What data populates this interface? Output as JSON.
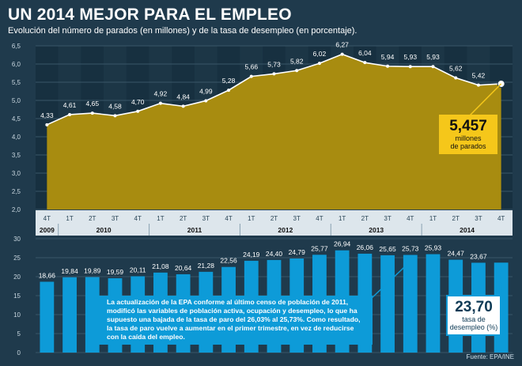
{
  "header": {
    "title": "UN 2014 MEJOR PARA EL EMPLEO",
    "subtitle": "Evolución del número de parados (en millones) y de la tasa de desempleo (en porcentaje)."
  },
  "chart_data": [
    {
      "type": "area",
      "title": "",
      "xlabel": "",
      "ylabel": "",
      "categories": [
        "4T 2009",
        "1T 2010",
        "2T 2010",
        "3T 2010",
        "4T 2010",
        "1T 2011",
        "2T 2011",
        "3T 2011",
        "4T 2011",
        "1T 2012",
        "2T 2012",
        "3T 2012",
        "4T 2012",
        "1T 2013",
        "2T 2013",
        "3T 2013",
        "4T 2013",
        "1T 2014",
        "2T 2014",
        "3T 2014",
        "4T 2014"
      ],
      "values": [
        4.33,
        4.61,
        4.65,
        4.58,
        4.7,
        4.92,
        4.84,
        4.99,
        5.28,
        5.66,
        5.73,
        5.82,
        6.02,
        6.27,
        6.04,
        5.94,
        5.93,
        5.93,
        5.62,
        5.42,
        5.457
      ],
      "labels": [
        "4,33",
        "4,61",
        "4,65",
        "4,58",
        "4,70",
        "4,92",
        "4,84",
        "4,99",
        "5,28",
        "5,66",
        "5,73",
        "5,82",
        "6,02",
        "6,27",
        "6,04",
        "5,94",
        "5,93",
        "5,93",
        "5,62",
        "5,42",
        ""
      ],
      "ylim": [
        2.0,
        6.5
      ],
      "yticks": [
        "2.0",
        "2.5",
        "3.0",
        "3.5",
        "4.0",
        "4.5",
        "5.0",
        "5.5",
        "6.0",
        "6.5"
      ],
      "grid": true,
      "colors": {
        "area": "#a88c10",
        "line": "#ffffff"
      }
    },
    {
      "type": "bar",
      "title": "",
      "xlabel": "",
      "ylabel": "",
      "categories": [
        "4T 2009",
        "1T 2010",
        "2T 2010",
        "3T 2010",
        "4T 2010",
        "1T 2011",
        "2T 2011",
        "3T 2011",
        "4T 2011",
        "1T 2012",
        "2T 2012",
        "3T 2012",
        "4T 2012",
        "1T 2013",
        "2T 2013",
        "3T 2013",
        "4T 2013",
        "1T 2014",
        "2T 2014",
        "3T 2014",
        "4T 2014"
      ],
      "values": [
        18.66,
        19.84,
        19.89,
        19.59,
        20.11,
        21.08,
        20.64,
        21.28,
        22.56,
        24.19,
        24.4,
        24.79,
        25.77,
        26.94,
        26.06,
        25.65,
        25.73,
        25.93,
        24.47,
        23.67,
        23.7
      ],
      "labels": [
        "18,66",
        "19,84",
        "19,89",
        "19,59",
        "20,11",
        "21,08",
        "20,64",
        "21,28",
        "22,56",
        "24,19",
        "24,40",
        "24,79",
        "25,77",
        "26,94",
        "26,06",
        "25,65",
        "25,73",
        "25,93",
        "24,47",
        "23,67",
        ""
      ],
      "ylim": [
        0,
        30
      ],
      "yticks": [
        "0",
        "5",
        "10",
        "15",
        "20",
        "25",
        "30"
      ],
      "grid": true,
      "colors": {
        "bar": "#0d9bd8"
      }
    }
  ],
  "axis": {
    "quarters": [
      "4T",
      "1T",
      "2T",
      "3T",
      "4T",
      "1T",
      "2T",
      "3T",
      "4T",
      "1T",
      "2T",
      "3T",
      "4T",
      "1T",
      "2T",
      "3T",
      "4T",
      "1T",
      "2T",
      "3T",
      "4T"
    ],
    "years": [
      "2009",
      "2010",
      "2011",
      "2012",
      "2013",
      "2014"
    ]
  },
  "callouts": {
    "parados_value": "5,457",
    "parados_label_1": "millones",
    "parados_label_2": "de parados",
    "tasa_value": "23,70",
    "tasa_label_1": "tasa de",
    "tasa_label_2": "desempleo (%)",
    "note": "La actualización de la EPA conforme al último censo de población de 2011, modificó las variables de población activa, ocupación y desempleo, lo que ha supuesto una bajada de la tasa de paro del 26,03% al 25,73%. Como resultado, la tasa de paro vuelve a aumentar en el primer trimestre, en vez de reducirse con la caída del empleo."
  },
  "source": "Fuente: EPA/INE"
}
